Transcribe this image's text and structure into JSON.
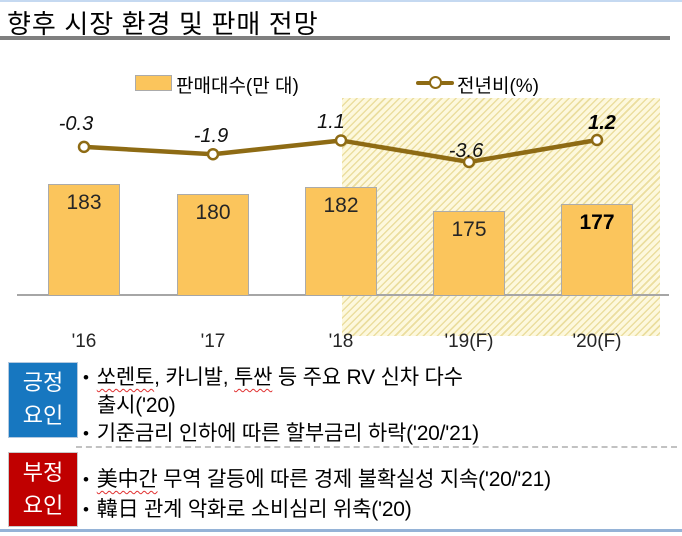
{
  "slide": {
    "title": "향후 시장 환경 및 판매 전망"
  },
  "chart_data": {
    "type": "bar",
    "subtype": "bar+line combo",
    "categories": [
      "'16",
      "'17",
      "'18",
      "'19(F)",
      "'20(F)"
    ],
    "series": [
      {
        "name": "판매대수(만 대)",
        "type": "bar",
        "values": [
          183,
          180,
          182,
          175,
          177
        ]
      },
      {
        "name": "전년비(%)",
        "type": "line",
        "values": [
          -0.3,
          -1.9,
          1.1,
          -3.6,
          1.2
        ]
      }
    ],
    "title": "",
    "xlabel": "",
    "ylabel": "",
    "bar_ylim": [
      150,
      195
    ],
    "line_ylim": [
      -6,
      3
    ],
    "grid": false,
    "legend_position": "top",
    "highlight_region": {
      "categories": [
        "'19(F)",
        "'20(F)"
      ],
      "style": "diagonal-hatch"
    },
    "emphasized_values": {
      "bar": 177,
      "line": 1.2
    }
  },
  "factors": {
    "positive": {
      "label": [
        "긍정",
        "요인"
      ],
      "bullet_char": "•",
      "b1_parts": {
        "p1": "쏘렌토",
        "p2": ", 카니발, ",
        "p3": "투싼",
        "p4": " 등 주요 RV 신차 다수"
      },
      "b1_line2": "출시('20)",
      "b2": "기준금리 인하에 따른 할부금리 하락('20/'21)"
    },
    "negative": {
      "label": [
        "부정",
        "요인"
      ],
      "bullet_char": "•",
      "b1_parts": {
        "p1": "美中간",
        "p2": " 무역 갈등에 따른 경제 불확실성 지속('20/'21)"
      },
      "b2": "韓日 관계 악화로 소비심리 위축('20)"
    }
  },
  "colors": {
    "bar_fill": "#FBC55C",
    "bar_border": "#ABABAB",
    "line": "#8E6B14",
    "highlight_bg": "#FDF8DD",
    "highlight_stripe": "#EBDE9F",
    "positive_box": "#1777C0",
    "negative_box": "#C00000",
    "axis": "#A6A6A6",
    "title_underline": "#7F7F7F",
    "top_border": "#C5D9F1",
    "bottom_border": "#95B3D7"
  }
}
